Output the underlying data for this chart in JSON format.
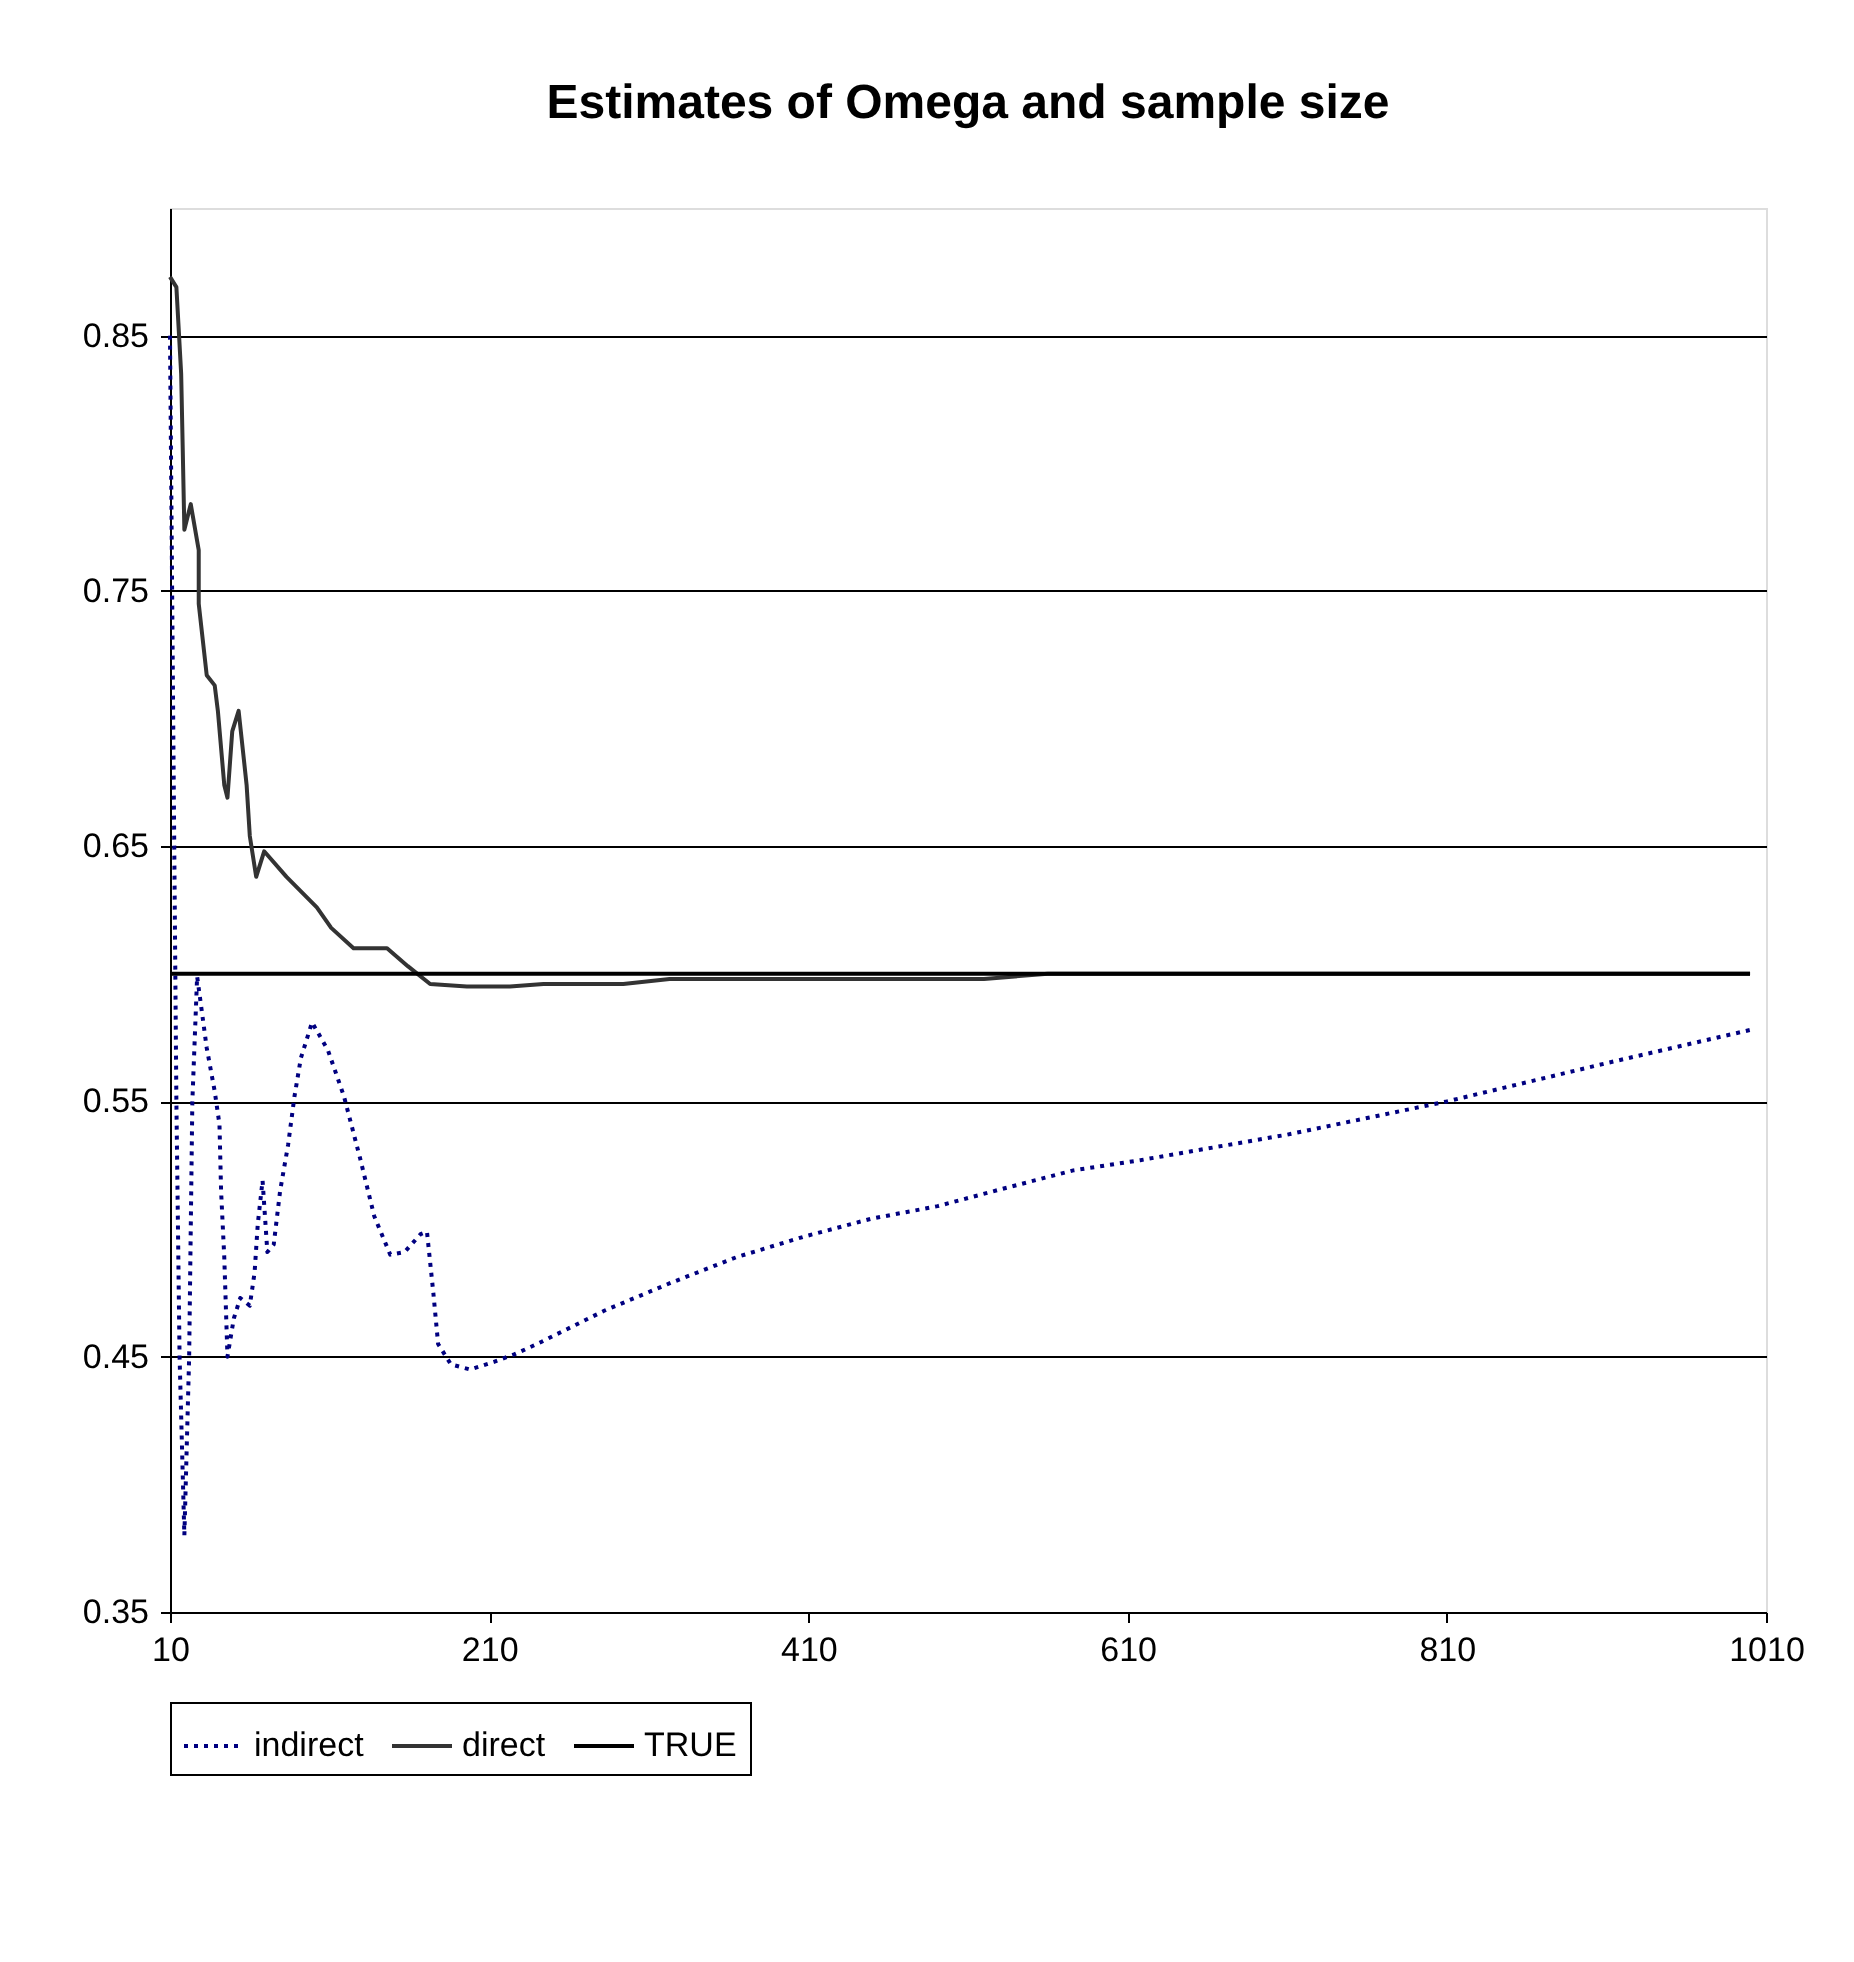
{
  "chart_data": {
    "type": "line",
    "title": "Estimates of Omega and sample size",
    "xlim": [
      10,
      1010
    ],
    "xticks": [
      10,
      210,
      410,
      610,
      810,
      1010
    ],
    "ylim": [
      0.35,
      0.9
    ],
    "yticks": [
      0.35,
      0.45,
      0.55,
      0.65,
      0.75,
      0.85
    ],
    "grid": "y",
    "legend": "bottom",
    "marker": "none",
    "series": [
      {
        "name": "indirect",
        "color": "#000080",
        "line_style": "dotted",
        "x": [
          10,
          12,
          14,
          16,
          19,
          22,
          24,
          27,
          33,
          38,
          41,
          42,
          44,
          46,
          50,
          54,
          60,
          63,
          65,
          68,
          71,
          75,
          79,
          84,
          88,
          92,
          99,
          109,
          119,
          129,
          138,
          148,
          157,
          167,
          171,
          175,
          178,
          186,
          198,
          213,
          226,
          240,
          282,
          324,
          365,
          407,
          449,
          491,
          533,
          576,
          618,
          710,
          810,
          910,
          1000
        ],
        "values": [
          0.85,
          0.7,
          0.55,
          0.45,
          0.38,
          0.45,
          0.55,
          0.599,
          0.571,
          0.554,
          0.541,
          0.515,
          0.489,
          0.45,
          0.465,
          0.473,
          0.47,
          0.483,
          0.502,
          0.519,
          0.491,
          0.494,
          0.515,
          0.533,
          0.552,
          0.567,
          0.581,
          0.57,
          0.552,
          0.528,
          0.505,
          0.49,
          0.491,
          0.498,
          0.499,
          0.475,
          0.455,
          0.447,
          0.445,
          0.448,
          0.451,
          0.455,
          0.468,
          0.479,
          0.489,
          0.497,
          0.504,
          0.509,
          0.516,
          0.523,
          0.527,
          0.537,
          0.55,
          0.565,
          0.578
        ]
      },
      {
        "name": "direct",
        "color": "#333333",
        "line_style": "solid",
        "x": [
          10,
          14,
          17,
          18,
          19,
          23,
          28,
          28,
          33,
          38,
          40,
          44,
          46,
          49,
          53,
          58,
          60,
          64,
          69,
          83,
          102,
          111,
          125,
          146,
          159,
          173,
          196,
          223,
          244,
          294,
          323,
          420,
          520,
          560,
          700,
          850,
          1000
        ],
        "values": [
          0.873,
          0.869,
          0.835,
          0.805,
          0.774,
          0.784,
          0.766,
          0.745,
          0.717,
          0.713,
          0.703,
          0.674,
          0.669,
          0.695,
          0.703,
          0.674,
          0.654,
          0.638,
          0.648,
          0.638,
          0.626,
          0.618,
          0.61,
          0.61,
          0.603,
          0.596,
          0.595,
          0.595,
          0.596,
          0.596,
          0.598,
          0.598,
          0.598,
          0.6,
          0.6,
          0.6,
          0.6
        ]
      },
      {
        "name": "TRUE",
        "color": "#000000",
        "line_style": "solid",
        "x": [
          10,
          1000
        ],
        "values": [
          0.6,
          0.6
        ]
      }
    ]
  }
}
